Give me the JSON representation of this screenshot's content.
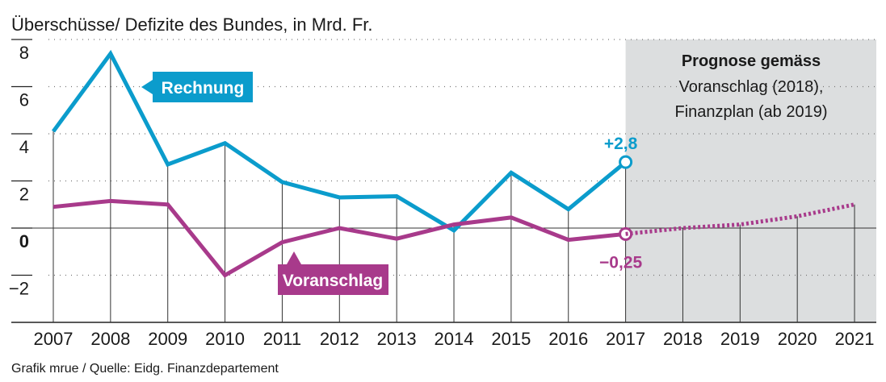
{
  "chart_data": {
    "type": "line",
    "title": "Überschüsse/ Defizite des Bundes, in Mrd. Fr.",
    "source": "Grafik mrue / Quelle: Eidg. Finanzdepartement",
    "x": [
      2007,
      2008,
      2009,
      2010,
      2011,
      2012,
      2013,
      2014,
      2015,
      2016,
      2017,
      2018,
      2019,
      2020,
      2021
    ],
    "xticks": [
      "2007",
      "2008",
      "2009",
      "2010",
      "2011",
      "2012",
      "2013",
      "2014",
      "2015",
      "2016",
      "2017",
      "2018",
      "2019",
      "2020",
      "2021"
    ],
    "yticks": [
      {
        "v": 8,
        "label": "8"
      },
      {
        "v": 6,
        "label": "6"
      },
      {
        "v": 4,
        "label": "4"
      },
      {
        "v": 2,
        "label": "2"
      },
      {
        "v": 0,
        "label": "0"
      },
      {
        "v": -2,
        "label": "−2"
      }
    ],
    "ylim": [
      -4,
      8
    ],
    "grid": true,
    "series": [
      {
        "name": "Rechnung",
        "color": "#0b9ccc",
        "x": [
          2007,
          2008,
          2009,
          2010,
          2011,
          2012,
          2013,
          2014,
          2015,
          2016,
          2017
        ],
        "values": [
          4.1,
          7.4,
          2.7,
          3.6,
          1.95,
          1.3,
          1.35,
          -0.1,
          2.35,
          0.8,
          2.8
        ],
        "end_label": "+2,8"
      },
      {
        "name": "Voranschlag",
        "color": "#a83a8b",
        "x": [
          2007,
          2008,
          2009,
          2010,
          2011,
          2012,
          2013,
          2014,
          2015,
          2016,
          2017
        ],
        "values": [
          0.9,
          1.15,
          1.0,
          -2.0,
          -0.6,
          0.0,
          -0.45,
          0.15,
          0.45,
          -0.5,
          -0.25
        ],
        "end_label": "−0,25"
      },
      {
        "name": "Voranschlag Prognose",
        "color": "#a83a8b",
        "dashed": true,
        "x": [
          2017,
          2018,
          2019,
          2020,
          2021
        ],
        "values": [
          -0.25,
          0.0,
          0.15,
          0.5,
          1.0
        ]
      }
    ],
    "forecast_box": {
      "from": 2017,
      "to": 2021,
      "title": "Prognose gemäss",
      "line1": "Voranschlag (2018),",
      "line2": "Finanzplan (ab 2019)",
      "color": "#dcdedf"
    }
  }
}
